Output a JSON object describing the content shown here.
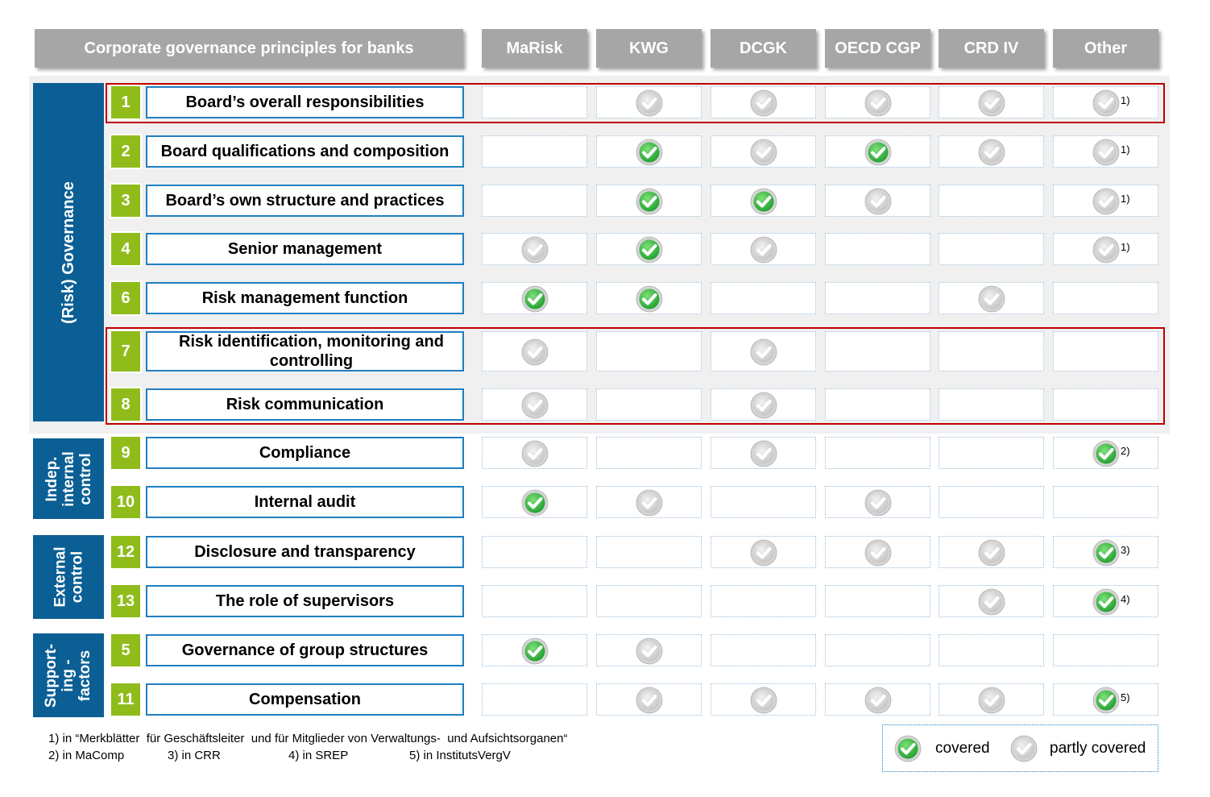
{
  "header": {
    "title": "Corporate governance principles for banks",
    "columns": [
      "MaRisk",
      "KWG",
      "DCGK",
      "OECD CGP",
      "CRD IV",
      "Other"
    ]
  },
  "groups": [
    {
      "label": "(Risk) Governance"
    },
    {
      "label": "Indep.\ninternal\ncontrol"
    },
    {
      "label": "External\ncontrol"
    },
    {
      "label": "Support-\ning -\nfactors"
    }
  ],
  "rows": [
    {
      "num": "1",
      "name": "Board’s overall responsibilities",
      "marks": [
        "",
        "partly",
        "partly",
        "partly",
        "partly",
        "partly"
      ],
      "note": "1)"
    },
    {
      "num": "2",
      "name": "Board qualifications and composition",
      "marks": [
        "",
        "covered",
        "partly",
        "covered",
        "partly",
        "partly"
      ],
      "note": "1)"
    },
    {
      "num": "3",
      "name": "Board’s own structure and practices",
      "marks": [
        "",
        "covered",
        "covered",
        "partly",
        "",
        "partly"
      ],
      "note": "1)"
    },
    {
      "num": "4",
      "name": "Senior management",
      "marks": [
        "partly",
        "covered",
        "partly",
        "",
        "",
        "partly"
      ],
      "note": "1)"
    },
    {
      "num": "6",
      "name": "Risk management function",
      "marks": [
        "covered",
        "covered",
        "",
        "",
        "partly",
        ""
      ],
      "note": ""
    },
    {
      "num": "7",
      "name": "Risk identification, monitoring and controlling",
      "marks": [
        "partly",
        "",
        "partly",
        "",
        "",
        ""
      ],
      "note": ""
    },
    {
      "num": "8",
      "name": "Risk communication",
      "marks": [
        "partly",
        "",
        "partly",
        "",
        "",
        ""
      ],
      "note": ""
    },
    {
      "num": "9",
      "name": "Compliance",
      "marks": [
        "partly",
        "",
        "partly",
        "",
        "",
        "covered"
      ],
      "note": "2)"
    },
    {
      "num": "10",
      "name": "Internal audit",
      "marks": [
        "covered",
        "partly",
        "",
        "partly",
        "",
        ""
      ],
      "note": ""
    },
    {
      "num": "12",
      "name": "Disclosure and transparency",
      "marks": [
        "",
        "",
        "partly",
        "partly",
        "partly",
        "covered"
      ],
      "note": "3)"
    },
    {
      "num": "13",
      "name": "The role of supervisors",
      "marks": [
        "",
        "",
        "",
        "",
        "partly",
        "covered"
      ],
      "note": "4)"
    },
    {
      "num": "5",
      "name": "Governance of group structures",
      "marks": [
        "covered",
        "partly",
        "",
        "",
        "",
        ""
      ],
      "note": ""
    },
    {
      "num": "11",
      "name": "Compensation",
      "marks": [
        "",
        "partly",
        "partly",
        "partly",
        "partly",
        "covered"
      ],
      "note": "5)"
    }
  ],
  "footnotes": {
    "line1": "1) in “Merkblätter  für Geschäftsleiter  und für Mitglieder von Verwaltungs-  und Aufsichtsorganen“",
    "line2": [
      "2) in MaComp",
      "3) in CRR",
      "4) in SREP",
      "5) in InstitutsVergV"
    ]
  },
  "legend": {
    "covered": "covered",
    "partly": "partly covered"
  },
  "colors": {
    "covered": "#3cb54a",
    "partly": "#c8c8c8",
    "group_blue": "#0b5f94",
    "number_green": "#8fbc1b",
    "highlight_red": "#c00000"
  }
}
